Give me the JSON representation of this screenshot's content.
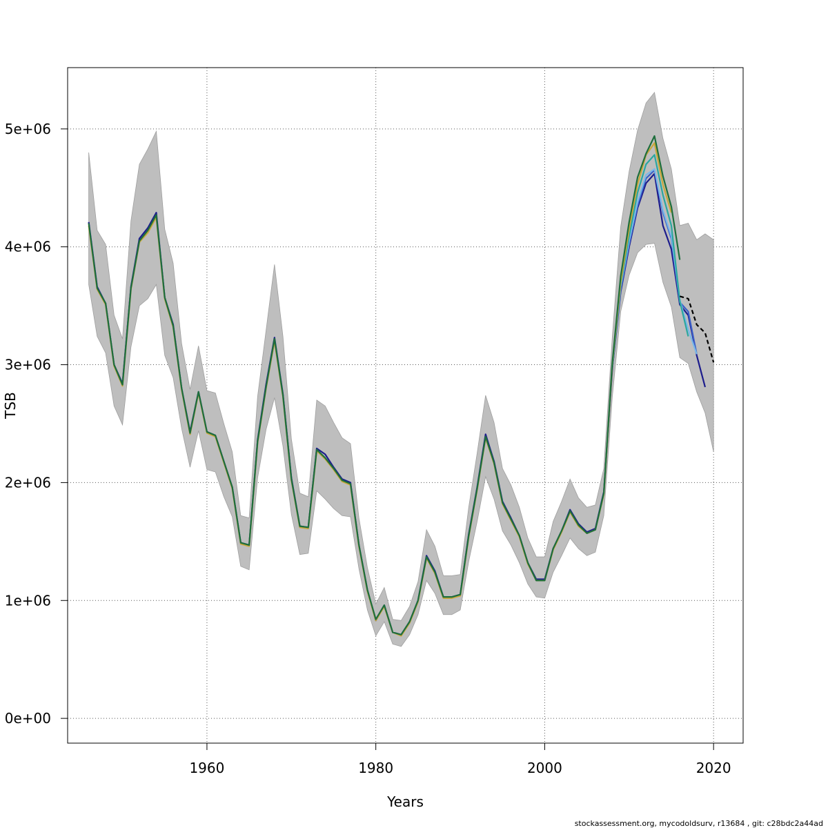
{
  "chart_data": {
    "type": "line",
    "xlabel": "Years",
    "ylabel": "TSB",
    "xlim": [
      1943.5,
      2023.5
    ],
    "ylim": [
      -210000,
      5520000
    ],
    "x_ticks": [
      {
        "value": 1960,
        "label": "1960"
      },
      {
        "value": 1980,
        "label": "1980"
      },
      {
        "value": 2000,
        "label": "2000"
      },
      {
        "value": 2020,
        "label": "2020"
      }
    ],
    "y_ticks": [
      {
        "value": 0,
        "label": "0e+00"
      },
      {
        "value": 1000000,
        "label": "1e+06"
      },
      {
        "value": 2000000,
        "label": "2e+06"
      },
      {
        "value": 3000000,
        "label": "3e+06"
      },
      {
        "value": 4000000,
        "label": "4e+06"
      },
      {
        "value": 5000000,
        "label": "5e+06"
      }
    ],
    "grid": true,
    "grid_style": "dotted",
    "confidence_band": {
      "color": "#bebebe",
      "x": [
        1946,
        1947,
        1948,
        1949,
        1950,
        1951,
        1952,
        1953,
        1954,
        1955,
        1956,
        1957,
        1958,
        1959,
        1960,
        1961,
        1962,
        1963,
        1964,
        1965,
        1966,
        1967,
        1968,
        1969,
        1970,
        1971,
        1972,
        1973,
        1974,
        1975,
        1976,
        1977,
        1978,
        1979,
        1980,
        1981,
        1982,
        1983,
        1984,
        1985,
        1986,
        1987,
        1988,
        1989,
        1990,
        1991,
        1992,
        1993,
        1994,
        1995,
        1996,
        1997,
        1998,
        1999,
        2000,
        2001,
        2002,
        2003,
        2004,
        2005,
        2006,
        2007,
        2008,
        2009,
        2010,
        2011,
        2012,
        2013,
        2014,
        2015,
        2016,
        2017,
        2018,
        2019,
        2020
      ],
      "upper": [
        4800000,
        4140000,
        4020000,
        3420000,
        3220000,
        4220000,
        4700000,
        4830000,
        4980000,
        4150000,
        3860000,
        3180000,
        2790000,
        3160000,
        2780000,
        2760000,
        2500000,
        2260000,
        1720000,
        1700000,
        2730000,
        3290000,
        3850000,
        3240000,
        2370000,
        1910000,
        1880000,
        2700000,
        2650000,
        2510000,
        2380000,
        2330000,
        1700000,
        1280000,
        970000,
        1110000,
        840000,
        830000,
        950000,
        1160000,
        1600000,
        1460000,
        1210000,
        1210000,
        1220000,
        1790000,
        2250000,
        2740000,
        2510000,
        2120000,
        1980000,
        1790000,
        1530000,
        1370000,
        1370000,
        1670000,
        1840000,
        2030000,
        1870000,
        1790000,
        1810000,
        2120000,
        3230000,
        4170000,
        4640000,
        4990000,
        5220000,
        5310000,
        4920000,
        4660000,
        4180000,
        4200000,
        4060000,
        4110000,
        4060000
      ],
      "lower": [
        3680000,
        3240000,
        3100000,
        2650000,
        2490000,
        3150000,
        3500000,
        3560000,
        3680000,
        3080000,
        2890000,
        2460000,
        2130000,
        2440000,
        2110000,
        2090000,
        1880000,
        1710000,
        1290000,
        1260000,
        2040000,
        2450000,
        2720000,
        2310000,
        1730000,
        1390000,
        1400000,
        1930000,
        1860000,
        1780000,
        1720000,
        1710000,
        1270000,
        920000,
        700000,
        820000,
        630000,
        610000,
        710000,
        880000,
        1170000,
        1060000,
        880000,
        880000,
        920000,
        1330000,
        1670000,
        2050000,
        1860000,
        1590000,
        1470000,
        1320000,
        1140000,
        1030000,
        1020000,
        1240000,
        1380000,
        1530000,
        1440000,
        1380000,
        1410000,
        1720000,
        2720000,
        3450000,
        3760000,
        3950000,
        4020000,
        4030000,
        3700000,
        3490000,
        3060000,
        3010000,
        2770000,
        2590000,
        2260000
      ]
    },
    "series": [
      {
        "color": "#1c1c8c",
        "x": [
          1946,
          1947,
          1948,
          1949,
          1950,
          1951,
          1952,
          1953,
          1954,
          1955,
          1956,
          1957,
          1958,
          1959,
          1960,
          1961,
          1962,
          1963,
          1964,
          1965,
          1966,
          1967,
          1968,
          1969,
          1970,
          1971,
          1972,
          1973,
          1974,
          1975,
          1976,
          1977,
          1978,
          1979,
          1980,
          1981,
          1982,
          1983,
          1984,
          1985,
          1986,
          1987,
          1988,
          1989,
          1990,
          1991,
          1992,
          1993,
          1994,
          1995,
          1996,
          1997,
          1998,
          1999,
          2000,
          2001,
          2002,
          2003,
          2004,
          2005,
          2006,
          2007,
          2008,
          2009,
          2010,
          2011,
          2012,
          2013,
          2014,
          2015,
          2016,
          2017,
          2018,
          2019
        ],
        "y": [
          4210000,
          3660000,
          3520000,
          3000000,
          2840000,
          3660000,
          4070000,
          4160000,
          4290000,
          3570000,
          3340000,
          2800000,
          2430000,
          2770000,
          2430000,
          2400000,
          2180000,
          1960000,
          1490000,
          1470000,
          2360000,
          2830000,
          3230000,
          2750000,
          2040000,
          1630000,
          1620000,
          2290000,
          2240000,
          2130000,
          2030000,
          2000000,
          1470000,
          1090000,
          830000,
          960000,
          730000,
          710000,
          820000,
          1000000,
          1380000,
          1250000,
          1030000,
          1030000,
          1050000,
          1560000,
          1960000,
          2410000,
          2180000,
          1840000,
          1700000,
          1550000,
          1320000,
          1180000,
          1180000,
          1440000,
          1590000,
          1770000,
          1650000,
          1580000,
          1610000,
          1920000,
          2960000,
          3620000,
          4000000,
          4330000,
          4540000,
          4620000,
          4180000,
          3980000,
          3510000,
          3420000,
          3080000,
          2810000
        ]
      },
      {
        "color": "#3b5fc8",
        "x": [
          2008,
          2009,
          2010,
          2011,
          2012,
          2013,
          2014,
          2015,
          2016,
          2017,
          2018
        ],
        "y": [
          2970000,
          3640000,
          4020000,
          4350000,
          4580000,
          4650000,
          4290000,
          4070000,
          3530000,
          3450000,
          3090000
        ]
      },
      {
        "color": "#7ab8e8",
        "x": [
          2008,
          2009,
          2010,
          2011,
          2012,
          2013,
          2014,
          2015,
          2016,
          2017,
          2018
        ],
        "y": [
          2980000,
          3660000,
          4050000,
          4380000,
          4610000,
          4660000,
          4310000,
          4090000,
          3550000,
          3300000,
          3090000
        ]
      },
      {
        "color": "#2aa7a0",
        "x": [
          2008,
          2009,
          2010,
          2011,
          2012,
          2013,
          2014,
          2015,
          2016,
          2017
        ],
        "y": [
          2980000,
          3680000,
          4090000,
          4460000,
          4700000,
          4780000,
          4440000,
          4180000,
          3540000,
          3240000
        ]
      },
      {
        "color": "#c8a83c",
        "x": [
          1946,
          1947,
          1948,
          1949,
          1950,
          1951,
          1952,
          1953,
          1954,
          1955,
          1956,
          1957,
          1958,
          1959,
          1960,
          1961,
          1962,
          1963,
          1964,
          1965,
          1966,
          1967,
          1968,
          1969,
          1970,
          1971,
          1972,
          1973,
          1974,
          1975,
          1976,
          1977,
          1978,
          1979,
          1980,
          1981,
          1982,
          1983,
          1984,
          1985,
          1986,
          1987,
          1988,
          1989,
          1990,
          1991,
          1992,
          1993,
          1994,
          1995,
          1996,
          1997,
          1998,
          1999,
          2000,
          2001,
          2002,
          2003,
          2004,
          2005,
          2006,
          2007,
          2008,
          2009,
          2010,
          2011,
          2012,
          2013,
          2014,
          2015
        ],
        "y": [
          4180000,
          3640000,
          3510000,
          2990000,
          2820000,
          3640000,
          4040000,
          4120000,
          4250000,
          3560000,
          3320000,
          2790000,
          2410000,
          2760000,
          2420000,
          2390000,
          2170000,
          1950000,
          1480000,
          1460000,
          2340000,
          2800000,
          3200000,
          2730000,
          2020000,
          1620000,
          1610000,
          2270000,
          2200000,
          2110000,
          2010000,
          1980000,
          1460000,
          1080000,
          830000,
          950000,
          730000,
          700000,
          810000,
          990000,
          1360000,
          1230000,
          1020000,
          1020000,
          1040000,
          1540000,
          1940000,
          2380000,
          2160000,
          1820000,
          1680000,
          1540000,
          1310000,
          1170000,
          1170000,
          1430000,
          1580000,
          1750000,
          1630000,
          1570000,
          1600000,
          1900000,
          2990000,
          3700000,
          4150000,
          4530000,
          4780000,
          4880000,
          4530000,
          4290000
        ]
      },
      {
        "color": "#1e6e3c",
        "x": [
          1946,
          1947,
          1948,
          1949,
          1950,
          1951,
          1952,
          1953,
          1954,
          1955,
          1956,
          1957,
          1958,
          1959,
          1960,
          1961,
          1962,
          1963,
          1964,
          1965,
          1966,
          1967,
          1968,
          1969,
          1970,
          1971,
          1972,
          1973,
          1974,
          1975,
          1976,
          1977,
          1978,
          1979,
          1980,
          1981,
          1982,
          1983,
          1984,
          1985,
          1986,
          1987,
          1988,
          1989,
          1990,
          1991,
          1992,
          1993,
          1994,
          1995,
          1996,
          1997,
          1998,
          1999,
          2000,
          2001,
          2002,
          2003,
          2004,
          2005,
          2006,
          2007,
          2008,
          2009,
          2010,
          2011,
          2012,
          2013,
          2014,
          2015,
          2016
        ],
        "y": [
          4200000,
          3650000,
          3520000,
          3000000,
          2830000,
          3650000,
          4050000,
          4140000,
          4270000,
          3570000,
          3330000,
          2800000,
          2420000,
          2770000,
          2430000,
          2400000,
          2180000,
          1960000,
          1490000,
          1470000,
          2350000,
          2810000,
          3220000,
          2740000,
          2030000,
          1630000,
          1620000,
          2280000,
          2210000,
          2120000,
          2020000,
          1990000,
          1470000,
          1090000,
          840000,
          960000,
          730000,
          710000,
          820000,
          1000000,
          1370000,
          1240000,
          1030000,
          1030000,
          1050000,
          1550000,
          1950000,
          2390000,
          2170000,
          1830000,
          1690000,
          1550000,
          1320000,
          1170000,
          1170000,
          1440000,
          1590000,
          1760000,
          1640000,
          1570000,
          1600000,
          1910000,
          3010000,
          3750000,
          4210000,
          4590000,
          4790000,
          4940000,
          4600000,
          4340000,
          3890000
        ]
      },
      {
        "color": "#000000",
        "dashed": true,
        "x": [
          2016,
          2017,
          2018,
          2019,
          2020
        ],
        "y": [
          3580000,
          3560000,
          3340000,
          3270000,
          3020000
        ]
      }
    ]
  },
  "footer": {
    "text": "stockassessment.org, mycodoldsurv, r13684 , git: c28bdc2a44ad"
  }
}
